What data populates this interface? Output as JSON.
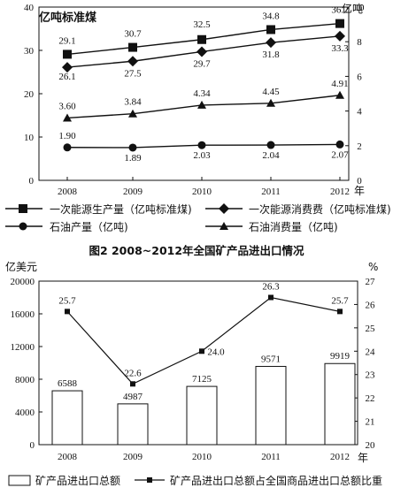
{
  "chart_data": [
    {
      "type": "line",
      "categories": [
        "2008",
        "2009",
        "2010",
        "2011",
        "2012"
      ],
      "x_unit": "年",
      "y_left": {
        "label": "亿吨标准煤",
        "range": [
          0,
          40
        ],
        "ticks": [
          "0",
          "10",
          "20",
          "30",
          "40"
        ]
      },
      "y_right": {
        "label": "亿吨",
        "range": [
          0,
          10
        ],
        "ticks": [
          "0",
          "2",
          "4",
          "6",
          "8",
          "10"
        ]
      },
      "series": [
        {
          "name": "一次能源生产量（亿吨标准煤)",
          "axis": "left",
          "marker": "square",
          "values": [
            29.1,
            30.7,
            32.5,
            34.8,
            36.2
          ],
          "labels": [
            "29.1",
            "30.7",
            "32.5",
            "34.8",
            "36.2"
          ]
        },
        {
          "name": "一次能源消费费（亿吨标准煤)",
          "axis": "left",
          "marker": "diamond",
          "values": [
            26.1,
            27.5,
            29.7,
            31.8,
            33.3
          ],
          "labels": [
            "26.1",
            "27.5",
            "29.7",
            "31.8",
            "33.3"
          ]
        },
        {
          "name": "石油产量（亿吨)",
          "axis": "right",
          "marker": "circle",
          "values": [
            1.9,
            1.89,
            2.03,
            2.04,
            2.07
          ],
          "labels": [
            "1.90",
            "1.89",
            "2.03",
            "2.04",
            "2.07"
          ]
        },
        {
          "name": "石油消费量（亿吨)",
          "axis": "right",
          "marker": "triangle",
          "values": [
            3.6,
            3.84,
            4.34,
            4.45,
            4.91
          ],
          "labels": [
            "3.60",
            "3.84",
            "4.34",
            "4.45",
            "4.91"
          ]
        }
      ]
    },
    {
      "type": "bar",
      "title": "图2   2008~2012年全国矿产品进出口情况",
      "categories": [
        "2008",
        "2009",
        "2010",
        "2011",
        "2012"
      ],
      "x_unit": "年",
      "y_left": {
        "label": "亿美元",
        "range": [
          0,
          20000
        ],
        "ticks": [
          "0",
          "4000",
          "8000",
          "12000",
          "16000",
          "20000"
        ]
      },
      "y_right": {
        "label": "%",
        "range": [
          20,
          27
        ],
        "ticks": [
          "20",
          "21",
          "22",
          "23",
          "24",
          "25",
          "26",
          "27"
        ]
      },
      "series": [
        {
          "name": "矿产品进出口总额",
          "kind": "bar",
          "axis": "left",
          "values": [
            6588,
            4987,
            7125,
            9571,
            9919
          ],
          "labels": [
            "6588",
            "4987",
            "7125",
            "9571",
            "9919"
          ]
        },
        {
          "name": "矿产品进出口总额占全国商品进出口总额比重",
          "kind": "line",
          "axis": "right",
          "values": [
            25.7,
            22.6,
            24.0,
            26.3,
            25.7
          ],
          "labels": [
            "25.7",
            "22.6",
            "24.0",
            "26.3",
            "25.7"
          ]
        }
      ]
    }
  ]
}
